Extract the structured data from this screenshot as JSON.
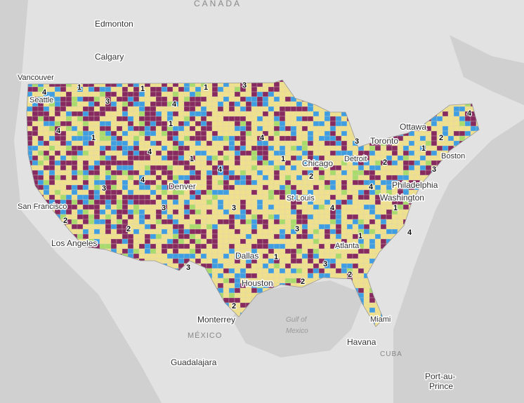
{
  "places": {
    "canada": "CANADA",
    "edmonton": "Edmonton",
    "calgary": "Calgary",
    "vancouver": "Vancouver",
    "seattle": "Seattle",
    "san_francisco": "San Francisco",
    "los_angeles": "Los Angeles",
    "denver": "Denver",
    "chicago": "Chicago",
    "detroit": "Detroit",
    "toronto": "Toronto",
    "ottawa": "Ottawa",
    "boston": "Boston",
    "philadelphia": "Philadelphia",
    "washington": "Washington",
    "st_louis": "St Louis",
    "atlanta": "Atlanta",
    "dallas": "Dallas",
    "houston": "Houston",
    "monterrey": "Monterrey",
    "mexico": "MÉXICO",
    "gulf": "Gulf of",
    "gulf2": "Mexico",
    "miami": "Miami",
    "havana": "Havana",
    "cuba": "CUBA",
    "guadalajara": "Guadalajara",
    "port_au_prince": "Port-au-",
    "port_au_prince2": "Prince"
  },
  "county_labels": [
    "4",
    "1",
    "3",
    "1",
    "4",
    "1",
    "3",
    "4",
    "1",
    "3",
    "2",
    "4",
    "3",
    "1",
    "4",
    "3",
    "2",
    "2",
    "3",
    "4",
    "1",
    "2",
    "3",
    "4",
    "1",
    "3",
    "2",
    "4",
    "1",
    "3",
    "2",
    "4",
    "1",
    "2",
    "3",
    "4",
    "1",
    "2",
    "1",
    "4"
  ],
  "class_colors": {
    "1": "#efe08e",
    "2": "#862a60",
    "3": "#3f9ee2",
    "4": "#a9db6c"
  }
}
